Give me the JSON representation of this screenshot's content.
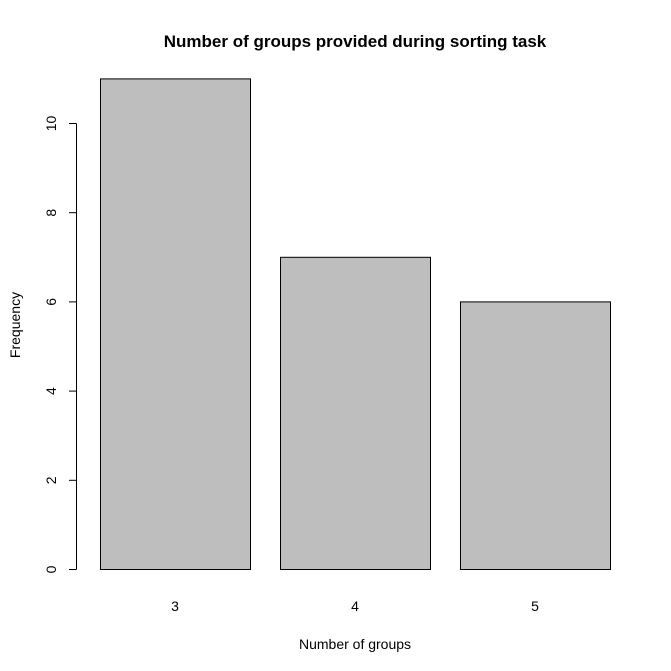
{
  "chart_data": {
    "type": "bar",
    "title": "Number of groups provided during sorting task",
    "xlabel": "Number of groups",
    "ylabel": "Frequency",
    "categories": [
      "3",
      "4",
      "5"
    ],
    "values": [
      11,
      7,
      6
    ],
    "ylim": [
      0,
      11
    ],
    "yticks": [
      0,
      2,
      4,
      6,
      8,
      10
    ],
    "bar_color": "#bebebe",
    "border_color": "#000000",
    "grid": false,
    "legend": "none"
  }
}
